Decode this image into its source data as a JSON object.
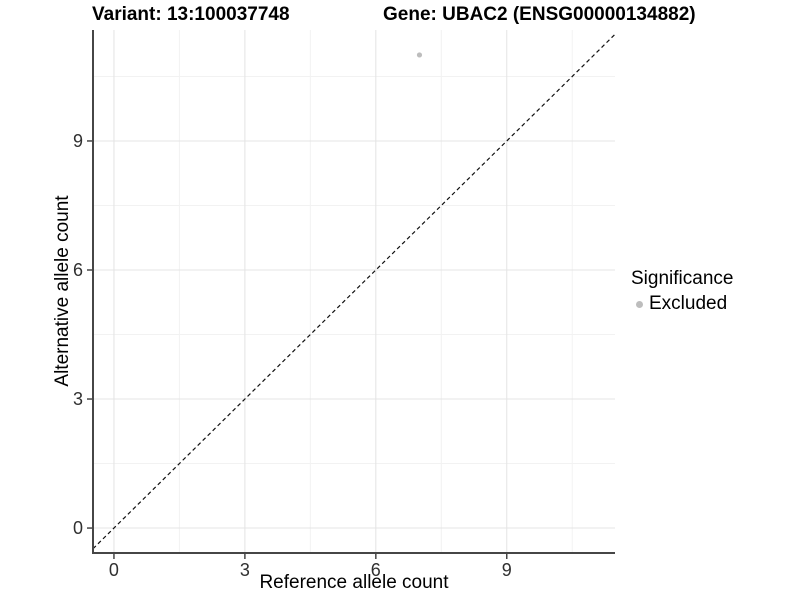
{
  "titles": {
    "variant": "Variant: 13:100037748",
    "gene": "Gene: UBAC2 (ENSG00000134882)"
  },
  "chart_data": {
    "type": "scatter",
    "xlabel": "Reference allele count",
    "ylabel": "Alternative allele count",
    "xlim": [
      -0.48,
      11.48
    ],
    "ylim": [
      -0.58,
      11.58
    ],
    "x_ticks": [
      0,
      3,
      6,
      9
    ],
    "y_ticks": [
      0,
      3,
      6,
      9
    ],
    "x_minor_gridlines": [
      1.5,
      4.5,
      7.5,
      10.5
    ],
    "y_minor_gridlines": [
      1.5,
      4.5,
      7.5,
      10.5
    ],
    "grid": true,
    "points": [
      {
        "x": 7,
        "y": 11,
        "significance": "Excluded"
      }
    ],
    "identity_line": {
      "slope": 1,
      "intercept": 0,
      "style": "dashed"
    },
    "legend": {
      "title": "Significance",
      "position": "right",
      "entries": [
        {
          "label": "Excluded",
          "color": "#bdbdbd"
        }
      ]
    }
  },
  "colors": {
    "background": "#ffffff",
    "point": "#bdbdbd",
    "axis_line": "#464646",
    "grid_major": "#e4e4e4",
    "grid_minor": "#f2f2f2",
    "dashed_line": "#111111",
    "title_text": "#000000",
    "tick_text": "#303030"
  }
}
